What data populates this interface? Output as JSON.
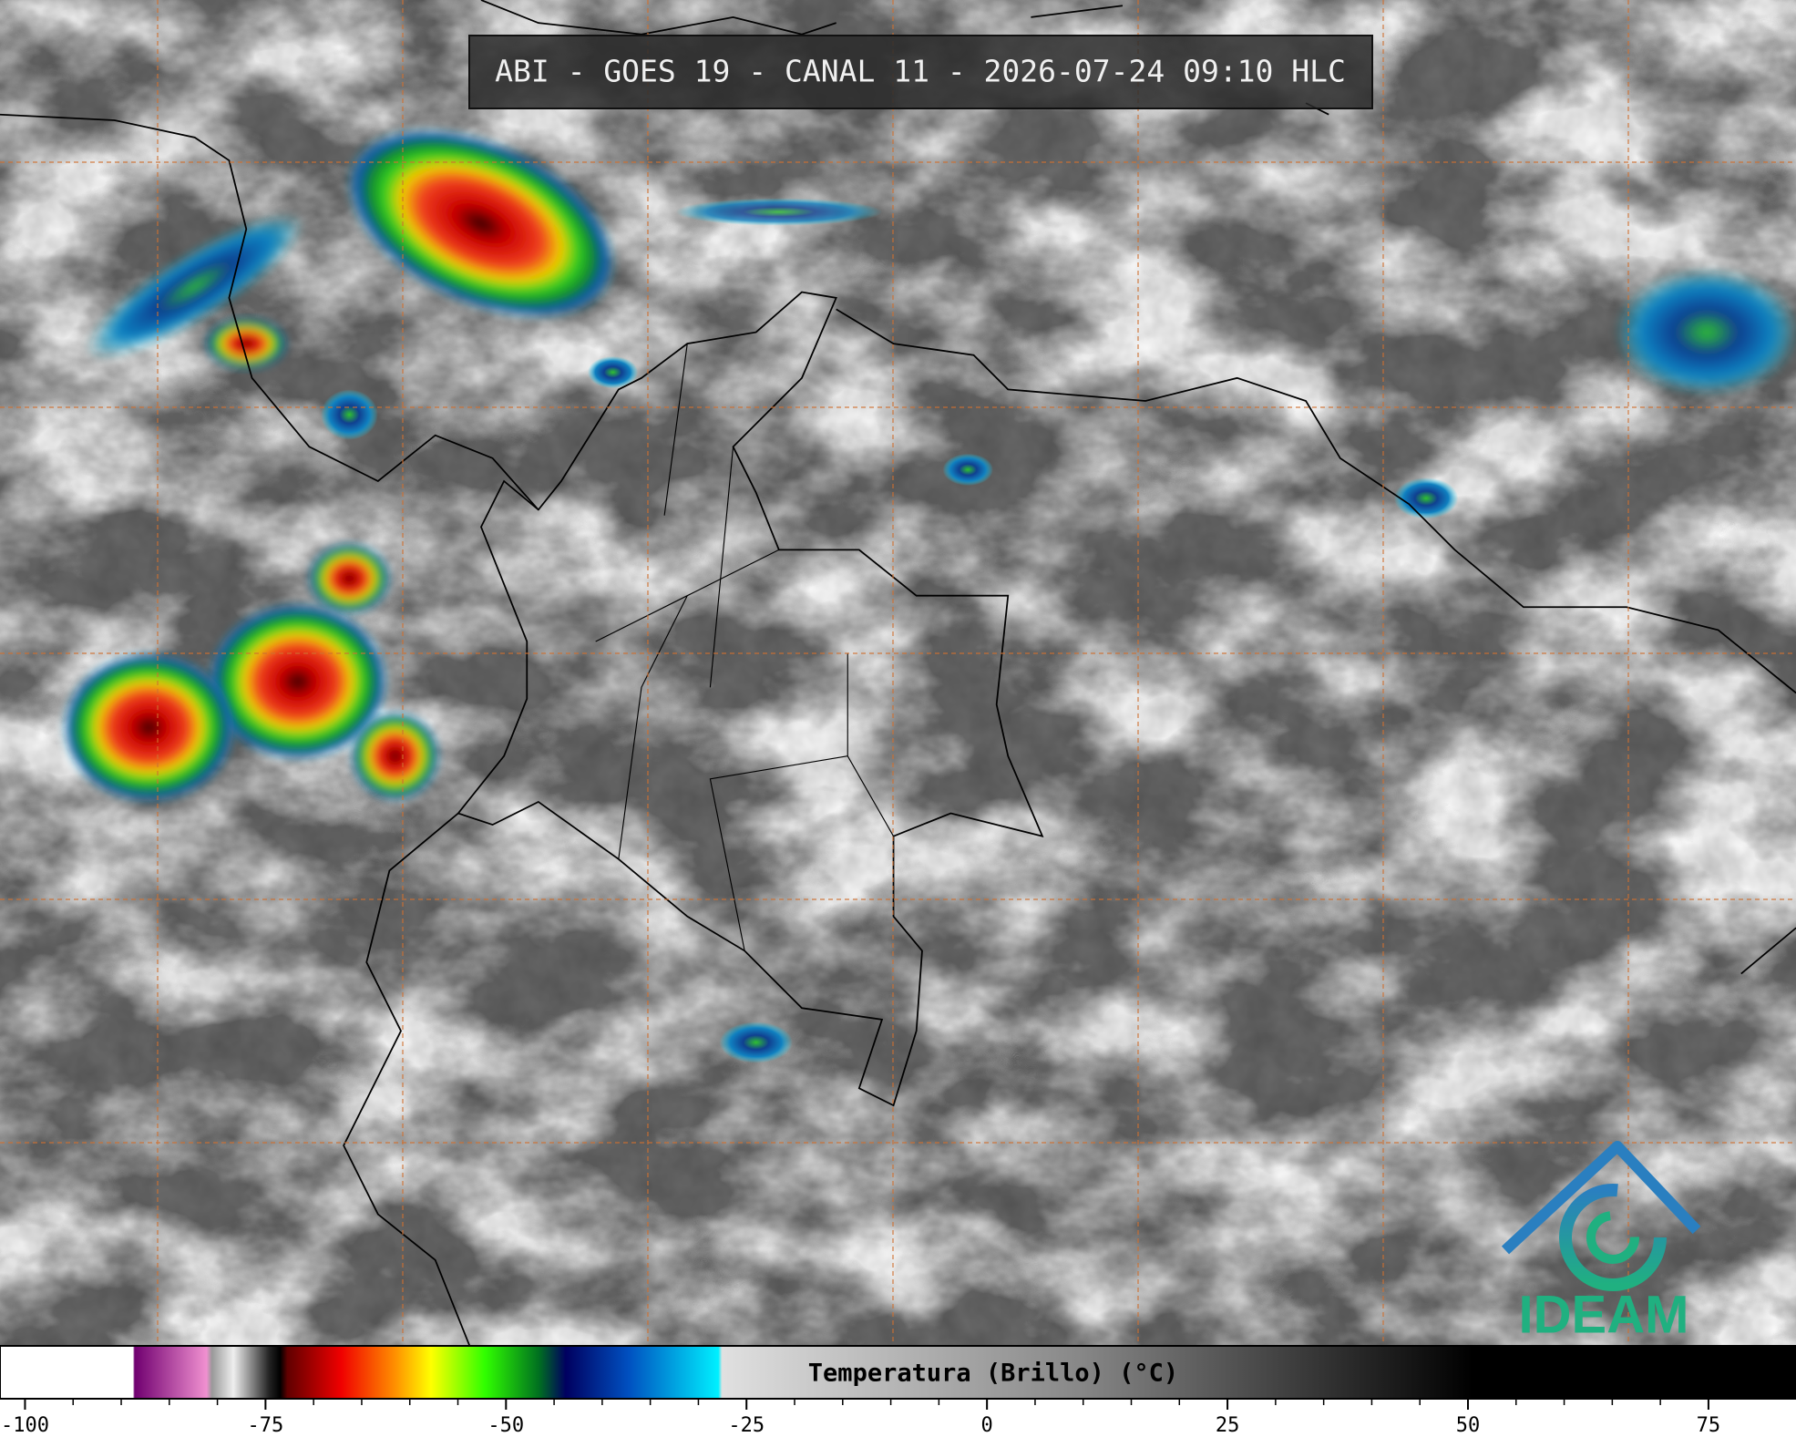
{
  "header": {
    "title": "ABI - GOES 19 - CANAL 11 - 2026-07-24 09:10 HLC"
  },
  "colorbar": {
    "label": "Temperatura (Brillo) (°C)",
    "lim": [
      -102.6,
      84.1
    ],
    "ticks": [
      -100,
      -75,
      -50,
      -25,
      0,
      25,
      50,
      75
    ]
  },
  "logo": {
    "text": "IDEAM"
  }
}
